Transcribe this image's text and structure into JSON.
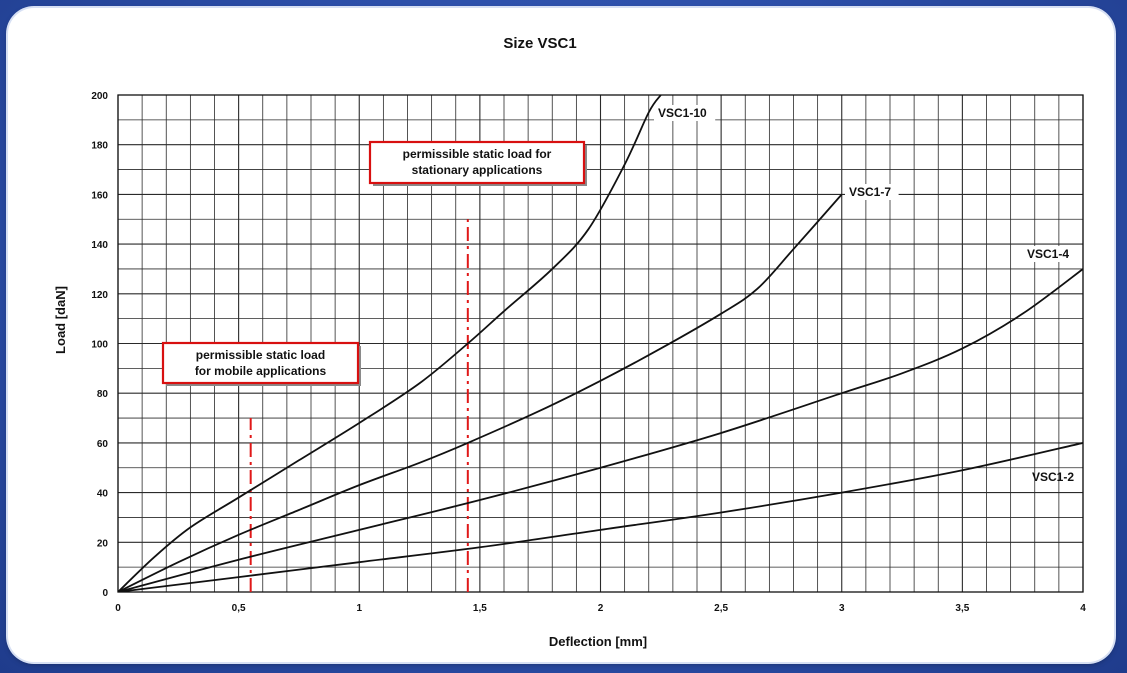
{
  "chart_data": {
    "type": "line",
    "title": "Size VSC1",
    "xlabel": "Deflection [mm]",
    "ylabel": "Load [daN]",
    "xlim": [
      0,
      4
    ],
    "ylim": [
      0,
      200
    ],
    "grid": true,
    "x_ticks": [
      {
        "value": 0,
        "label": "0"
      },
      {
        "value": 0.5,
        "label": "0,5"
      },
      {
        "value": 1,
        "label": "1"
      },
      {
        "value": 1.5,
        "label": "1,5"
      },
      {
        "value": 2,
        "label": "2"
      },
      {
        "value": 2.5,
        "label": "2,5"
      },
      {
        "value": 3,
        "label": "3"
      },
      {
        "value": 3.5,
        "label": "3,5"
      },
      {
        "value": 4,
        "label": "4"
      }
    ],
    "y_ticks": [
      {
        "value": 0,
        "label": "0"
      },
      {
        "value": 20,
        "label": "20"
      },
      {
        "value": 40,
        "label": "40"
      },
      {
        "value": 60,
        "label": "60"
      },
      {
        "value": 80,
        "label": "80"
      },
      {
        "value": 100,
        "label": "100"
      },
      {
        "value": 120,
        "label": "120"
      },
      {
        "value": 140,
        "label": "140"
      },
      {
        "value": 160,
        "label": "160"
      },
      {
        "value": 180,
        "label": "180"
      },
      {
        "value": 200,
        "label": "200"
      }
    ],
    "series": [
      {
        "name": "VSC1-10",
        "points": [
          [
            0,
            0
          ],
          [
            0.15,
            14
          ],
          [
            0.3,
            26
          ],
          [
            0.5,
            38
          ],
          [
            0.75,
            53
          ],
          [
            1,
            68
          ],
          [
            1.25,
            84
          ],
          [
            1.45,
            100
          ],
          [
            1.6,
            113
          ],
          [
            1.8,
            130
          ],
          [
            1.95,
            146
          ],
          [
            2.1,
            172
          ],
          [
            2.2,
            193
          ],
          [
            2.25,
            200
          ]
        ]
      },
      {
        "name": "VSC1-7",
        "points": [
          [
            0,
            0
          ],
          [
            0.25,
            12
          ],
          [
            0.5,
            23
          ],
          [
            0.75,
            33
          ],
          [
            1,
            43
          ],
          [
            1.25,
            52
          ],
          [
            1.45,
            60
          ],
          [
            1.75,
            73
          ],
          [
            2,
            85
          ],
          [
            2.25,
            98
          ],
          [
            2.5,
            112
          ],
          [
            2.65,
            122
          ],
          [
            2.8,
            138
          ],
          [
            3,
            160
          ]
        ]
      },
      {
        "name": "VSC1-4",
        "points": [
          [
            0,
            0
          ],
          [
            0.5,
            13
          ],
          [
            1,
            25
          ],
          [
            1.5,
            37
          ],
          [
            2,
            50
          ],
          [
            2.5,
            64
          ],
          [
            3,
            80
          ],
          [
            3.25,
            88
          ],
          [
            3.5,
            98
          ],
          [
            3.75,
            112
          ],
          [
            4,
            130
          ]
        ]
      },
      {
        "name": "VSC1-2",
        "points": [
          [
            0,
            0
          ],
          [
            0.5,
            6
          ],
          [
            1,
            12
          ],
          [
            1.5,
            18
          ],
          [
            2,
            25
          ],
          [
            2.5,
            32
          ],
          [
            3,
            40
          ],
          [
            3.5,
            49
          ],
          [
            4,
            60
          ]
        ]
      }
    ],
    "reference_lines": [
      {
        "x": 0.55,
        "y_range": [
          0,
          70
        ],
        "style": "dash-dot",
        "color": "#e01818"
      },
      {
        "x": 1.45,
        "y_range": [
          0,
          150
        ],
        "style": "dash-dot",
        "color": "#e01818"
      }
    ],
    "annotations": [
      {
        "lines": [
          "permissible static load",
          "for mobile applications"
        ],
        "anchor_x": 0.55
      },
      {
        "lines": [
          "permissible static load for",
          "stationary applications"
        ],
        "anchor_x": 1.45
      }
    ],
    "colors": {
      "line": "#111111",
      "grid": "#2a2a2a",
      "reference": "#e01818",
      "annotation_border": "#d81010"
    }
  }
}
